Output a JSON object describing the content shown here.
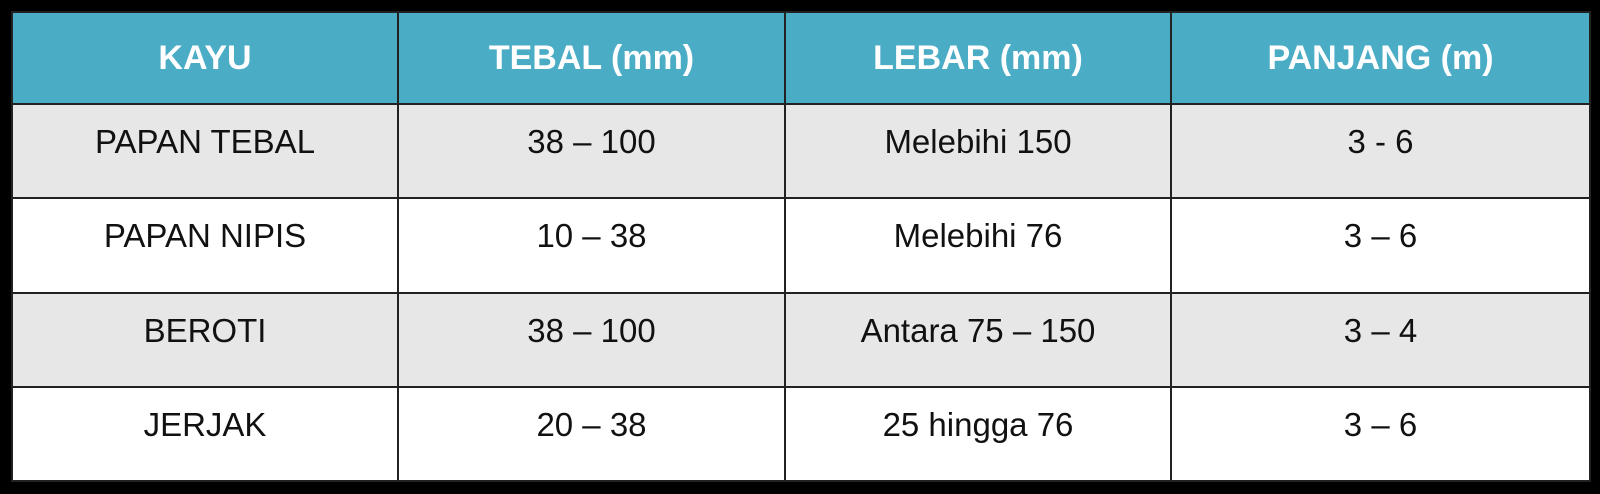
{
  "table": {
    "headers": [
      "KAYU",
      "TEBAL (mm)",
      "LEBAR (mm)",
      "PANJANG (m)"
    ],
    "rows": [
      [
        "PAPAN TEBAL",
        "38 – 100",
        "Melebihi 150",
        "3 - 6"
      ],
      [
        "PAPAN NIPIS",
        "10 – 38",
        "Melebihi 76",
        "3 – 6"
      ],
      [
        "BEROTI",
        "38 – 100",
        "Antara 75 – 150",
        "3 – 4"
      ],
      [
        "JERJAK",
        "20 – 38",
        "25 hingga 76",
        "3 – 6"
      ]
    ]
  },
  "colors": {
    "header_bg": "#4BACC6",
    "header_text": "#FFFFFF",
    "row_alt_bg": "#E7E7E7",
    "row_bg": "#FFFFFF",
    "frame": "#000000"
  }
}
